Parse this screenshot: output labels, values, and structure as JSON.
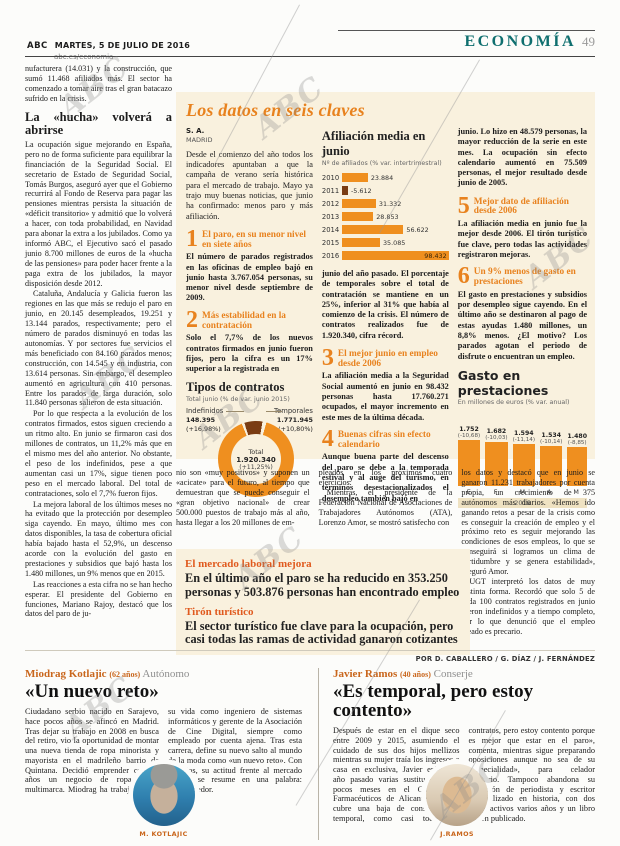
{
  "header": {
    "brand": "ABC",
    "date": "MARTES, 5 DE JULIO DE 2016",
    "url": "abc.es/economia",
    "section": "ECONOMÍA",
    "page_number": "49"
  },
  "left_column": {
    "p1": "nufacturera (14.031) y la construcción, que sumó 11.468 afiliados más. El sector ha comenzado a tomar aire tras el gran batacazo sufrido en la crisis.",
    "heading": "La «hucha» volverá a abrirse",
    "p2": "La ocupación sigue mejorando en España, pero no de forma suficiente para equilibrar la financiación de la Seguridad Social. El secretario de Estado de Seguridad Social, Tomás Burgos, aseguró ayer que el Gobierno recurrirá al Fondo de Reserva para pagar las pensiones mientras persista la situación de «déficit transitorio» y admitió que lo volverá a hacer, con toda probabilidad, en Navidad para abonar la extra a los jubilados. Como ya informó ABC, el Ejecutivo sacó el pasado junio 8.700 millones de euros de la «hucha de las pensiones» para poder hacer frente a la paga extra de los jubilados, la mayor disposición desde 2012.",
    "p3": "Cataluña, Andalucía y Galicia fueron las regiones en las que más se redujo el paro en junio, en 20.145 desempleados, 19.251 y 13.144 parados, respectivamente; pero el número de parados disminuyó en todas las autonomías. Y por sectores fue servicios el más beneficiado con 84.160 parados menos; construcción, con 14.545 y en industria, con 13.614 personas. Sin embargo, el desempleo aumentó en agricultura con 410 personas. Entre los parados de larga duración, solo 11.840 personas salieron de esta situación.",
    "p4": "Por lo que respecta a la evolución de los contratos firmados, estos siguen creciendo a un ritmo alto. En junio se firmaron casi dos millones de contratos, un 11,2% más que en el mismo mes del año anterior. No obstante, el peso de los indefinidos, pese a que aumentan casi un 17%, sigue tienen poco peso en el mercado laboral. Del total de contrataciones, solo el 7,7% fueron fijos.",
    "p5": "La mejora laboral de los últimos meses no ha evitado que la protección por desempleo siga cayendo. En mayo, último mes con datos disponibles, la tasa de cobertura oficial había bajado hasta el 52,9%, un descenso acorde con la evolución del gasto en prestaciones y subsidios que bajó hasta los 1.480 millones, un 9% menos que en 2015.",
    "p6": "Las reacciones a esta cifra no se han hecho esperar. El presidente del Gobierno en funciones, Mariano Rajoy, destacó que los datos del paro de ju-"
  },
  "box": {
    "title": "Los datos en seis claves",
    "byline_author": "S. A.",
    "byline_city": "MADRID",
    "intro": "Desde el comienzo del año todos los indicadores apuntaban a que la campaña de verano sería histórica para el mercado de trabajo. Mayo ya trajo muy buenas noticias, que junio ha confirmado: menos paro y más afiliación.",
    "keys": [
      {
        "num": "1",
        "title": "El paro, en su menor nivel en siete años",
        "body": "El número de parados registrados en las oficinas de empleo bajó en junio hasta 3.767.054 personas, su menor nivel desde septiembre de 2009."
      },
      {
        "num": "2",
        "title": "Más estabilidad en la contratación",
        "body": "Solo el 7,7% de los nuevos contratos firmados en junio fueron fijos, pero la cifra es un 17% superior a la registrada en"
      },
      {
        "num": "3",
        "title": "El mejor junio en empleo desde 2006",
        "body": "La afiliación media a la Seguridad Social aumentó en junio en 98.432 personas hasta 17.760.271 ocupados, el mayor incremento en este mes de la última década."
      },
      {
        "num": "4",
        "title": "Buenas cifras sin efecto calendario",
        "body": "Aunque buena parte del descenso del paro se debe a la temporada estival y al auge del turismo, en términos desestacionalizados el desempleo también bajó en"
      },
      {
        "num": "5",
        "title": "Mejor dato de afiliación desde 2006",
        "body": "La afiliación media en junio fue la mejor desde 2006. El tirón turístico fue clave, pero todas las actividades registraron mejoras."
      },
      {
        "num": "6",
        "title": "Un 9% menos de gasto en prestaciones",
        "body": "El gasto en prestaciones y subsidios por desempleo sigue cayendo. En el último año se destinaron al pago de estas ayudas 1.480 millones, un 8,8% menos. ¿El motivo? Los parados agotan el periodo de disfrute o encuentran un empleo."
      }
    ],
    "key2_cont": "junio del año pasado. El porcentaje de temporales sobre el total de contratación se mantiene en un 25%, inferior al 31% que había al comienzo de la crisis. El número de contratos realizados fue de 1.920.340, cifra récord.",
    "key4_cont": "junio. Lo hizo en 48.579 personas, la mayor reducción de la serie en este mes. La ocupación sin efecto calendario aumentó en 75.509 personas, el mejor resultado desde junio de 2005."
  },
  "chart_data": [
    {
      "type": "bar",
      "orientation": "horizontal",
      "title": "Afiliación media en junio",
      "subtitle": "Nº de afiliados (% var. intertrimestral)",
      "categories": [
        "2010",
        "2011",
        "2012",
        "2013",
        "2014",
        "2015",
        "2016"
      ],
      "values": [
        23884,
        -5612,
        31332,
        28853,
        56622,
        35085,
        98432
      ],
      "labels": [
        "23.884",
        "-5.612",
        "31.332",
        "28.853",
        "56.622",
        "35.085",
        "98.432"
      ],
      "highlight_index": 6,
      "bar_color": "#ef8f1f",
      "negative_color": "#7a3c13",
      "xlim": [
        -6000,
        100000
      ]
    },
    {
      "type": "pie",
      "title": "Tipos de contratos",
      "subtitle": "Total junio (% de var. junio 2015)",
      "slices": [
        {
          "name": "Indefinidos",
          "value": 148395,
          "label": "148.395",
          "pct_label": "(+16,98%)",
          "color": "#7a3c13"
        },
        {
          "name": "Temporales",
          "value": 1771945,
          "label": "1.771.945",
          "pct_label": "(+10,80%)",
          "color": "#ef8f1f"
        }
      ],
      "center": {
        "label": "Total",
        "value_label": "1.920.340",
        "pct_label": "(+11,25%)"
      }
    },
    {
      "type": "bar",
      "orientation": "vertical",
      "title": "Gasto en prestaciones",
      "subtitle": "En millones de euros (% var. anual)",
      "categories": [
        "E",
        "F",
        "M",
        "A",
        "M"
      ],
      "values": [
        1752,
        1682,
        1594,
        1534,
        1480
      ],
      "labels": [
        "1.752",
        "1.682",
        "1.594",
        "1.534",
        "1.480"
      ],
      "pct_labels": [
        "(-10,68)",
        "(-10,03)",
        "(-11,14)",
        "(-10,14)",
        "(-8,85)"
      ],
      "year_band": "2016",
      "bar_color": "#ef8f1f",
      "ylim": [
        0,
        1800
      ]
    }
  ],
  "continuation": {
    "col1_p1": "nio son «muy positivos» y suponen un «acicate» para el futuro, al tiempo que demuestran que se puede conseguir el «gran objetivo nacional» de crear 500.000 puestos de trabajo más al año, hasta llegar a los 20 millones de em-",
    "col2_p1": "pleados en los próximos cuatro ejercicios.",
    "col2_p2": "Mientras, el presidente de la Federación Nacional de Asociaciones de Trabajadores Autónomos (ATA), Lorenzo Amor, se mostró satisfecho con",
    "col3_p1": "los datos y destacó que en junio se ganaron 11.231 trabajadores por cuenta propia, un crecimiento de 375 autónomos más diarios. «Hemos ido ganando retos a pesar de la crisis como es conseguir la creación de empleo y el próximo reto es seguir mejorando las condiciones de esos empleos, lo que se conseguirá si logramos un clima de certidumbre y se genera estabilidad», aseguró Amor.",
    "col3_p2": "UGT interpretó los datos de muy distinta forma. Recordó que solo 5 de cada 100 contratos registrados en junio fueron indefinidos y a tiempo completo, por lo que denunció que el empleo creado es precario."
  },
  "destacados": [
    {
      "heading": "El mercado laboral mejora",
      "body": "En el último año el paro se ha reducido en 353.250 personas y 503.876 personas han encontrado empleo"
    },
    {
      "heading": "Tirón turístico",
      "body": "El sector turístico fue clave para la ocupación, pero casi todas las ramas de actividad ganaron cotizantes"
    }
  ],
  "credit": "POR D. CABALLERO / G. DÍAZ / J. FERNÁNDEZ",
  "interviews": [
    {
      "name": "Miodrag Kotlajic",
      "age": "(62 años)",
      "role": "Autónomo",
      "headline": "«Un nuevo reto»",
      "body": "Ciudadano serbio nacido en Sarajevo, hace pocos años se afincó en Madrid. Tras dejar su trabajo en 2008 en busca del retiro, vio la oportunidad de montar una nueva tienda de ropa minorista y mayorista en el madrileño barrio de Quintana. Decidió emprender con 62 años un negocio de ropa outlet multimarca. Miodrag ha trabajado toda su vida como ingeniero de sistemas informáticos y gerente de la Asociación de Cine Digital, siempre como empleado por cuenta ajena. Tras esta carrera, define su nuevo salto al mundo de la moda como «un nuevo reto». Con 62 años, su actitud frente al mercado laboral se resume en una palabra: emprendedor.",
      "photo_caption": "M. KOTLAJIC"
    },
    {
      "name": "Javier Ramos",
      "age": "(40 años)",
      "role": "Conserje",
      "headline": "«Es temporal, pero estoy contento»",
      "body": "Después de estar en el dique seco entre 2009 y 2015, asumiendo el cuidado de sus dos hijos mellizos mientras su mujer traía los ingresos a casa en exclusiva, Javier enlazó el año pasado varias sustituciones de pocos meses en el Colegio de Farmacéuticos de Alicante y ahora cubre una baja de conserje. «Es temporal, como casi todos los contratos, pero estoy contento porque es mejor que estar en el paro», comenta, mientras sigue preparando oposiciones aunque no sea de su «especialidad», para celador sanitario. Tampoco abandona su profesión de periodista y escritor especializado en historia, con dos blogs activos varios años y un libro recién publicado.",
      "photo_caption": "J.RAMOS"
    }
  ],
  "watermark_text": "ABC"
}
